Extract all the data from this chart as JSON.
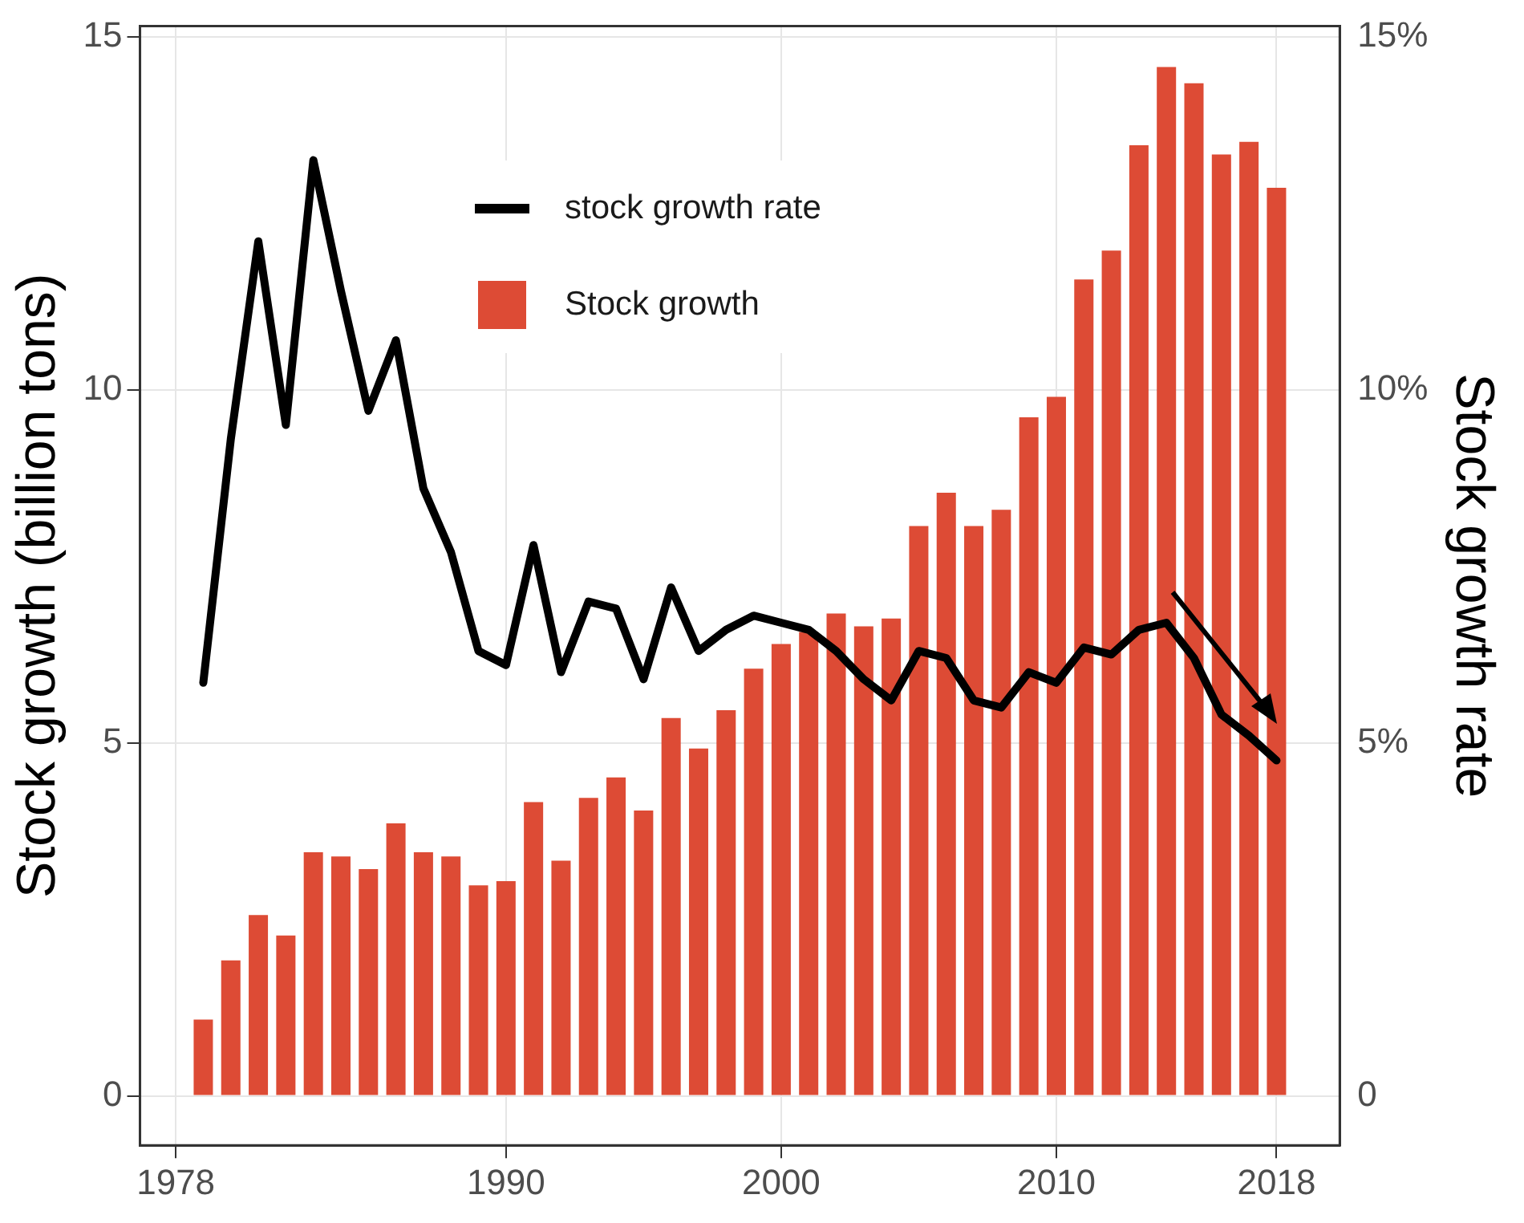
{
  "chart_data": {
    "type": "bar",
    "ylabel": "Stock growth (billion tons)",
    "y2label": "Stock growth rate",
    "x": [
      1979,
      1980,
      1981,
      1982,
      1983,
      1984,
      1985,
      1986,
      1987,
      1988,
      1989,
      1990,
      1991,
      1992,
      1993,
      1994,
      1995,
      1996,
      1997,
      1998,
      1999,
      2000,
      2001,
      2002,
      2003,
      2004,
      2005,
      2006,
      2007,
      2008,
      2009,
      2010,
      2011,
      2012,
      2013,
      2014,
      2015,
      2016,
      2017,
      2018
    ],
    "series": [
      {
        "name": "stock growth rate",
        "type": "line",
        "axis": "y2",
        "color": "#000000",
        "values": [
          5.85,
          9.3,
          12.1,
          9.5,
          13.25,
          11.4,
          9.7,
          10.7,
          8.6,
          7.7,
          6.3,
          6.1,
          7.8,
          6.0,
          7.0,
          6.9,
          5.9,
          7.2,
          6.3,
          6.6,
          6.8,
          6.7,
          6.6,
          6.3,
          5.9,
          5.6,
          6.3,
          6.2,
          5.6,
          5.5,
          6.0,
          5.85,
          6.35,
          6.25,
          6.6,
          6.7,
          6.2,
          5.4,
          5.1,
          4.75
        ]
      },
      {
        "name": "Stock growth",
        "color": "#dd4b35",
        "values": [
          1.08,
          1.92,
          2.56,
          2.27,
          3.45,
          3.39,
          3.21,
          3.86,
          3.45,
          3.39,
          2.98,
          3.04,
          4.16,
          3.33,
          4.22,
          4.51,
          4.04,
          5.35,
          4.92,
          5.46,
          6.05,
          6.4,
          6.57,
          6.83,
          6.65,
          6.76,
          8.07,
          8.54,
          8.07,
          8.3,
          9.61,
          9.9,
          11.56,
          11.97,
          13.46,
          14.57,
          14.34,
          13.33,
          13.51,
          12.86
        ]
      }
    ],
    "xlim": [
      1976.7,
      2020.3
    ],
    "xticks": [
      1978,
      1990,
      2000,
      2010,
      2018
    ],
    "ylim": [
      -0.7,
      15.15
    ],
    "yticks": [
      0,
      5,
      10,
      15
    ],
    "y2lim": [
      -0.7,
      15.15
    ],
    "y2ticks": [
      0,
      {
        "value": 5,
        "label": "5%"
      },
      {
        "value": 10,
        "label": "10%"
      },
      {
        "value": 15,
        "label": "15%"
      }
    ],
    "grid": true,
    "legend": "top left",
    "marker": "none",
    "line_style": "solid"
  }
}
